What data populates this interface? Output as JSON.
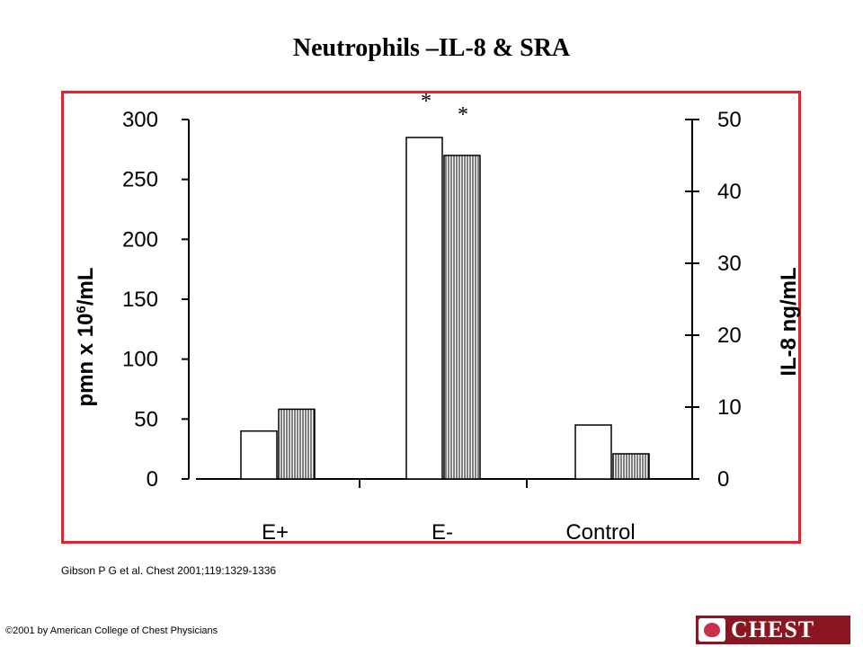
{
  "slide": {
    "title": "Neutrophils –IL-8 & SRA",
    "citation": "Gibson P G et al. Chest 2001;119:1329-1336",
    "copyright": "©2001 by American College of Chest Physicians",
    "logo_text": "CHEST",
    "frame_color": "#e8202a",
    "logo_color": "#8b1520"
  },
  "chart_data": {
    "type": "bar",
    "categories": [
      "E+",
      "E-",
      "Control"
    ],
    "series": [
      {
        "axis": "left",
        "pattern": "open",
        "values": [
          40,
          285,
          45
        ]
      },
      {
        "axis": "right",
        "pattern": "vertical-hatch",
        "values": [
          9.7,
          45,
          3.5
        ]
      }
    ],
    "annotations": [
      "*",
      "*"
    ],
    "left_axis": {
      "label_main": "pmn x 10",
      "label_sup": "6",
      "label_tail": "/mL",
      "ylim": [
        0,
        300
      ],
      "ticks": [
        0,
        50,
        100,
        150,
        200,
        250,
        300
      ]
    },
    "right_axis": {
      "label": "IL-8 ng/mL",
      "ylim": [
        0,
        50
      ],
      "ticks": [
        0,
        10,
        20,
        30,
        40,
        50
      ]
    },
    "grid": false
  }
}
